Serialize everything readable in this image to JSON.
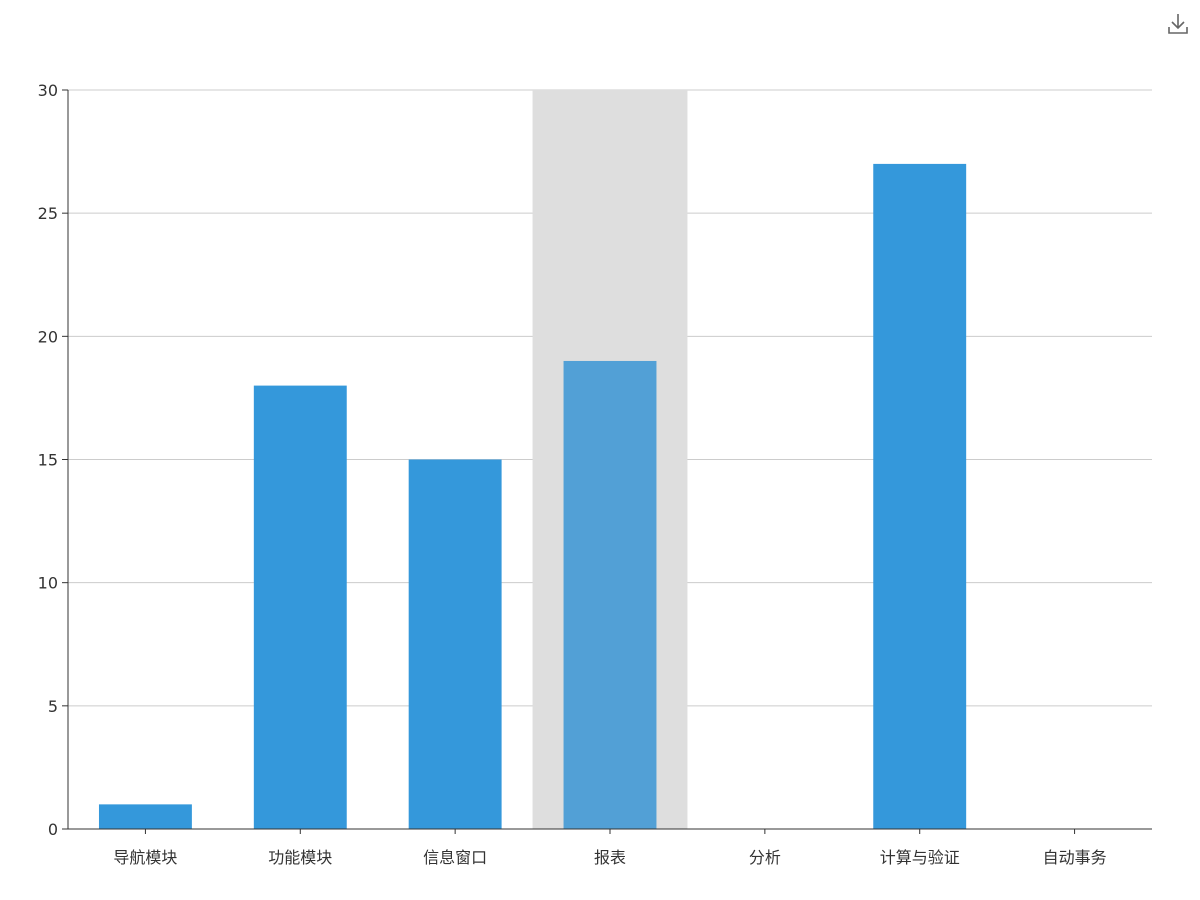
{
  "toolbar": {
    "download_icon": "download-icon"
  },
  "chart_data": {
    "type": "bar",
    "categories": [
      "导航模块",
      "功能模块",
      "信息窗口",
      "报表",
      "分析",
      "计算与验证",
      "自动事务"
    ],
    "values": [
      1,
      18,
      15,
      19,
      0,
      27,
      0
    ],
    "highlighted_category": "报表",
    "ylim": [
      0,
      30
    ],
    "yticks": [
      0,
      5,
      10,
      15,
      20,
      25,
      30
    ],
    "grid": true,
    "colors": {
      "bar": "#3498db",
      "bar_highlight": "#52a0d6",
      "axis_pointer": "#dedede",
      "grid": "#cccccc",
      "axis": "#333333"
    }
  }
}
